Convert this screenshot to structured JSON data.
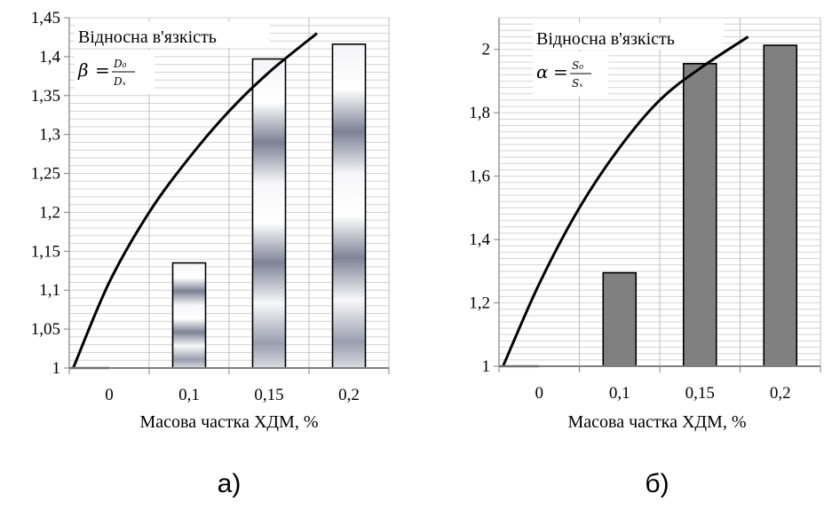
{
  "chart_data": [
    {
      "type": "bar",
      "categories": [
        "0",
        "0,1",
        "0,15",
        "0,2"
      ],
      "values": [
        1.0,
        1.135,
        1.397,
        1.416
      ],
      "ylim": [
        1,
        1.45
      ],
      "yticks": [
        1,
        1.05,
        1.1,
        1.15,
        1.2,
        1.25,
        1.3,
        1.35,
        1.4,
        1.45
      ],
      "ytick_labels": [
        "1",
        "1,05",
        "1,1",
        "1,15",
        "1,2",
        "1,25",
        "1,3",
        "1,35",
        "1,4",
        "1,45"
      ],
      "xlabel": "Масова частка ХДМ, %",
      "annotation": "Відносна в'язкість",
      "formula": {
        "lhs": "β",
        "num": "D₀",
        "den": "Dₓ"
      },
      "panel_label": "а)",
      "bar_fill": "gradient-silver",
      "trend": {
        "type": "line",
        "x": [
          0.05,
          0.5,
          1.0,
          1.5,
          2.0,
          2.5,
          3.1
        ],
        "y": [
          1.0,
          1.11,
          1.2,
          1.27,
          1.33,
          1.38,
          1.43
        ]
      },
      "grid": true,
      "legend": "none"
    },
    {
      "type": "bar",
      "categories": [
        "0",
        "0,1",
        "0,15",
        "0,2"
      ],
      "values": [
        1.0,
        1.295,
        1.955,
        2.013
      ],
      "ylim": [
        1,
        2.1
      ],
      "yticks": [
        1,
        1.2,
        1.4,
        1.6,
        1.8,
        2.0
      ],
      "ytick_labels": [
        "1",
        "1,2",
        "1,4",
        "1,6",
        "1,8",
        "2"
      ],
      "xlabel": "Масова частка ХДМ, %",
      "annotation": "Відносна в'язкість",
      "formula": {
        "lhs": "α",
        "num": "S₀",
        "den": "Sₓ"
      },
      "panel_label": "б)",
      "bar_fill": "#808080",
      "trend": {
        "type": "line",
        "x": [
          0.05,
          0.5,
          1.0,
          1.5,
          2.0,
          2.5,
          3.1
        ],
        "y": [
          1.0,
          1.26,
          1.5,
          1.69,
          1.84,
          1.94,
          2.04
        ]
      },
      "grid": true,
      "legend": "none"
    }
  ]
}
